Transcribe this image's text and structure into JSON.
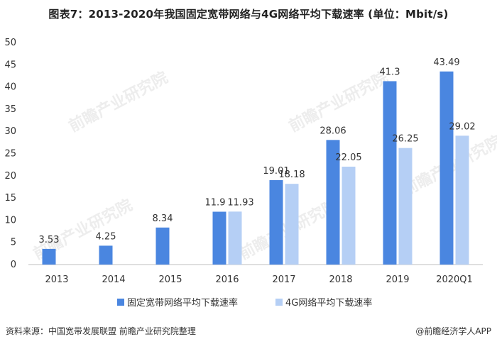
{
  "header": {
    "title": "图表7：2013-2020年我国固定宽带网络与4G网络平均下载速率 (单位：Mbit/s)"
  },
  "footer": {
    "source": "资料来源：中国宽带发展联盟 前瞻产业研究院整理",
    "brand": "@前瞻经济学人APP"
  },
  "watermark": "前瞻产业研究院",
  "colors": {
    "fixed": "#4a86e0",
    "lte": "#b5cff5",
    "axis": "#bfbfbf",
    "label": "#333333"
  },
  "chart_data": {
    "type": "bar",
    "categories": [
      "2013",
      "2014",
      "2015",
      "2016",
      "2017",
      "2018",
      "2019",
      "2020Q1"
    ],
    "series": [
      {
        "name": "固定宽带网络平均下载速率",
        "values": [
          3.53,
          4.25,
          8.34,
          11.9,
          19.01,
          28.06,
          41.3,
          43.49
        ]
      },
      {
        "name": "4G网络平均下载速率",
        "values": [
          null,
          null,
          null,
          11.93,
          18.18,
          22.05,
          26.25,
          29.02
        ]
      }
    ],
    "ylim": [
      0,
      50
    ],
    "yticks": [
      0,
      5,
      10,
      15,
      20,
      25,
      30,
      35,
      40,
      45,
      50
    ],
    "legend_position": "bottom-center",
    "grid": false
  }
}
